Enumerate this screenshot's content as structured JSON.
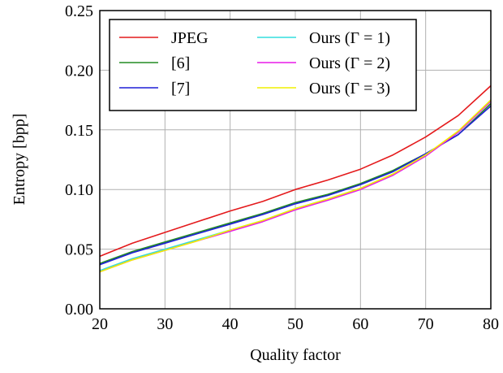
{
  "chart_data": {
    "type": "line",
    "xlabel": "Quality factor",
    "ylabel": "Entropy [bpp]",
    "xlim": [
      20,
      80
    ],
    "ylim": [
      0.0,
      0.25
    ],
    "xticks": [
      "20",
      "30",
      "40",
      "50",
      "60",
      "70",
      "80"
    ],
    "yticks": [
      "0.00",
      "0.05",
      "0.10",
      "0.15",
      "0.20",
      "0.25"
    ],
    "grid": true,
    "legend_position": "top",
    "x": [
      20,
      25,
      30,
      35,
      40,
      45,
      50,
      55,
      60,
      65,
      70,
      75,
      80
    ],
    "series": [
      {
        "name": "JPEG",
        "color": "#e41a1c",
        "values": [
          0.044,
          0.055,
          0.064,
          0.073,
          0.082,
          0.09,
          0.1,
          0.108,
          0.117,
          0.129,
          0.144,
          0.162,
          0.187
        ]
      },
      {
        "name": "[6]",
        "color": "#228b22",
        "values": [
          0.038,
          0.048,
          0.056,
          0.064,
          0.072,
          0.08,
          0.089,
          0.096,
          0.105,
          0.116,
          0.13,
          0.146,
          0.172
        ]
      },
      {
        "name": "[7]",
        "color": "#1f1fd6",
        "values": [
          0.037,
          0.047,
          0.055,
          0.063,
          0.071,
          0.079,
          0.088,
          0.095,
          0.104,
          0.115,
          0.13,
          0.146,
          0.17
        ]
      },
      {
        "name": "Ours (Γ = 1)",
        "color": "#33dddd",
        "values": [
          0.032,
          0.042,
          0.05,
          0.058,
          0.066,
          0.074,
          0.084,
          0.092,
          0.101,
          0.113,
          0.129,
          0.148,
          0.175
        ]
      },
      {
        "name": "Ours (Γ = 2)",
        "color": "#e81ae8",
        "values": [
          0.031,
          0.041,
          0.049,
          0.057,
          0.065,
          0.073,
          0.083,
          0.091,
          0.1,
          0.112,
          0.128,
          0.148,
          0.174
        ]
      },
      {
        "name": "Ours (Γ = 3)",
        "color": "#f0f000",
        "values": [
          0.031,
          0.041,
          0.049,
          0.057,
          0.066,
          0.074,
          0.084,
          0.092,
          0.101,
          0.113,
          0.129,
          0.149,
          0.175
        ]
      }
    ]
  }
}
